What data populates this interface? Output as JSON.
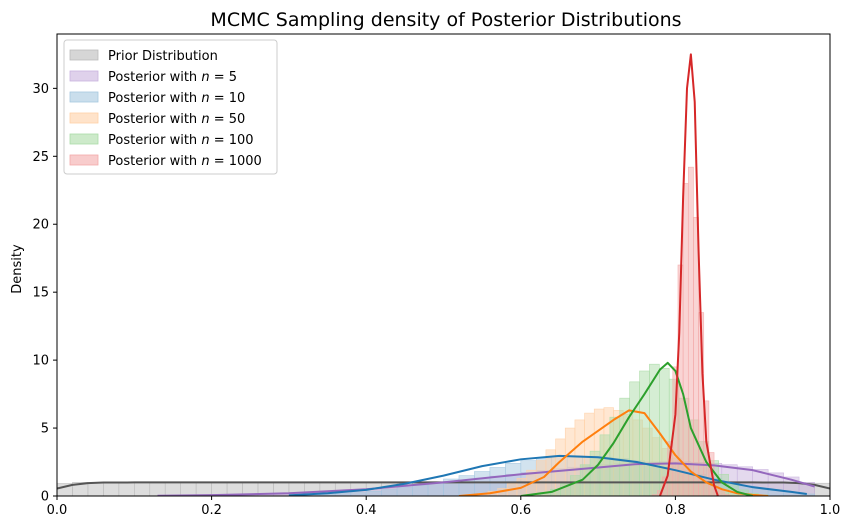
{
  "chart_data": {
    "type": "histogram+kde",
    "title": "MCMC Sampling density of Posterior Distributions",
    "xlabel": "",
    "ylabel": "Density",
    "xlim": [
      0.0,
      1.0
    ],
    "ylim": [
      0,
      34
    ],
    "x_ticks": [
      "0.0",
      "0.2",
      "0.4",
      "0.6",
      "0.8",
      "1.0"
    ],
    "x_tick_values": [
      0.0,
      0.2,
      0.4,
      0.6,
      0.8,
      1.0
    ],
    "y_ticks": [
      "0",
      "5",
      "10",
      "15",
      "20",
      "25",
      "30"
    ],
    "y_tick_values": [
      0,
      5,
      10,
      15,
      20,
      25,
      30
    ],
    "legend_position": "top-left",
    "series": [
      {
        "name": "Prior Distribution",
        "legend_prefix": "Prior Distribution",
        "legend_n": "",
        "color": "#555555",
        "fill": "#bbbbbb",
        "hist_range": [
          0.0,
          1.0
        ],
        "hist_values": [
          0.92,
          1.0,
          0.96,
          1.0,
          0.98,
          1.0,
          0.95,
          1.02,
          0.99,
          1.0,
          0.97,
          1.0,
          1.01,
          0.98,
          1.0,
          1.02,
          0.99,
          1.0,
          0.96,
          1.01,
          1.0,
          0.98,
          1.0,
          1.02,
          0.99,
          1.0,
          0.97,
          1.0,
          1.01,
          1.0,
          0.98,
          1.0,
          0.99,
          1.01,
          1.0,
          0.97,
          1.0,
          1.02,
          0.99,
          1.0,
          0.98,
          1.0,
          1.0,
          0.99,
          1.01,
          1.0,
          0.98,
          1.0,
          0.96,
          0.94
        ],
        "kde_x": [
          0.0,
          0.02,
          0.04,
          0.06,
          0.1,
          0.2,
          0.3,
          0.4,
          0.5,
          0.6,
          0.7,
          0.8,
          0.9,
          0.94,
          0.96,
          0.98,
          1.0
        ],
        "kde_y": [
          0.55,
          0.82,
          0.95,
          0.99,
          1.0,
          1.0,
          1.0,
          1.0,
          1.0,
          1.0,
          1.0,
          1.0,
          1.0,
          0.99,
          0.95,
          0.82,
          0.55
        ]
      },
      {
        "name": "Posterior with n = 5",
        "legend_prefix": "Posterior with ",
        "legend_n": "5",
        "color": "#9467bd",
        "fill": "#c9b3de",
        "hist_range": [
          0.14,
          0.98
        ],
        "hist_values": [
          0.02,
          0.03,
          0.04,
          0.06,
          0.08,
          0.1,
          0.13,
          0.16,
          0.2,
          0.24,
          0.29,
          0.35,
          0.42,
          0.5,
          0.58,
          0.68,
          0.8,
          0.92,
          1.05,
          1.18,
          1.32,
          1.46,
          1.6,
          1.74,
          1.88,
          2.0,
          2.12,
          2.22,
          2.32,
          2.4,
          2.46,
          2.5,
          2.52,
          2.52,
          2.48,
          2.4,
          2.3,
          2.15,
          1.95,
          1.7,
          1.4,
          1.0
        ],
        "kde_x": [
          0.13,
          0.2,
          0.3,
          0.4,
          0.5,
          0.6,
          0.7,
          0.75,
          0.8,
          0.85,
          0.9,
          0.95,
          0.98
        ],
        "kde_y": [
          0.02,
          0.06,
          0.2,
          0.5,
          1.0,
          1.6,
          2.1,
          2.35,
          2.4,
          2.25,
          1.9,
          1.2,
          0.7
        ]
      },
      {
        "name": "Posterior with n = 10",
        "legend_prefix": "Posterior with ",
        "legend_n": "10",
        "color": "#1f77b4",
        "fill": "#a6c8e0",
        "hist_range": [
          0.3,
          0.98
        ],
        "hist_values": [
          0.05,
          0.08,
          0.12,
          0.18,
          0.25,
          0.35,
          0.48,
          0.62,
          0.8,
          1.0,
          1.25,
          1.5,
          1.8,
          2.1,
          2.4,
          2.6,
          2.8,
          2.9,
          2.95,
          2.9,
          2.85,
          2.75,
          2.6,
          2.4,
          2.15,
          1.9,
          1.6,
          1.3,
          1.0,
          0.75,
          0.55,
          0.38,
          0.25,
          0.15
        ],
        "kde_x": [
          0.3,
          0.35,
          0.4,
          0.45,
          0.5,
          0.55,
          0.6,
          0.65,
          0.7,
          0.75,
          0.8,
          0.85,
          0.9,
          0.95,
          0.97
        ],
        "kde_y": [
          0.05,
          0.2,
          0.45,
          0.9,
          1.5,
          2.2,
          2.7,
          2.95,
          2.85,
          2.5,
          1.9,
          1.2,
          0.65,
          0.3,
          0.15
        ]
      },
      {
        "name": "Posterior with n = 50",
        "legend_prefix": "Posterior with ",
        "legend_n": "50",
        "color": "#ff7f0e",
        "fill": "#ffd0a6",
        "hist_range": [
          0.52,
          0.92
        ],
        "hist_values": [
          0.05,
          0.1,
          0.2,
          0.35,
          0.55,
          0.9,
          1.3,
          1.9,
          2.6,
          3.4,
          4.2,
          5.0,
          5.6,
          6.1,
          6.4,
          6.5,
          6.3,
          6.0,
          5.6,
          5.0,
          4.3,
          3.5,
          2.8,
          2.1,
          1.5,
          1.0,
          0.65,
          0.4,
          0.25,
          0.15,
          0.08,
          0.04
        ],
        "kde_x": [
          0.52,
          0.56,
          0.6,
          0.63,
          0.65,
          0.68,
          0.7,
          0.72,
          0.74,
          0.76,
          0.78,
          0.8,
          0.82,
          0.84,
          0.86,
          0.88,
          0.9,
          0.92
        ],
        "kde_y": [
          0.0,
          0.2,
          0.6,
          1.4,
          2.5,
          4.0,
          4.8,
          5.6,
          6.3,
          6.1,
          4.6,
          3.0,
          1.8,
          1.0,
          0.5,
          0.2,
          0.08,
          0.0
        ]
      },
      {
        "name": "Posterior with n = 100",
        "legend_prefix": "Posterior with ",
        "legend_n": "100",
        "color": "#2ca02c",
        "fill": "#abdca7",
        "hist_range": [
          0.6,
          0.92
        ],
        "hist_values": [
          0.05,
          0.12,
          0.25,
          0.5,
          0.9,
          1.5,
          2.3,
          3.3,
          4.5,
          5.8,
          7.2,
          8.4,
          9.2,
          9.7,
          9.4,
          8.6,
          7.2,
          5.6,
          4.0,
          2.6,
          1.6,
          0.9,
          0.45,
          0.2,
          0.08
        ],
        "kde_x": [
          0.6,
          0.64,
          0.68,
          0.7,
          0.72,
          0.74,
          0.76,
          0.78,
          0.79,
          0.8,
          0.81,
          0.82,
          0.84,
          0.86,
          0.88,
          0.9
        ],
        "kde_y": [
          0.0,
          0.3,
          1.2,
          2.3,
          3.9,
          5.8,
          7.5,
          9.3,
          9.8,
          9.2,
          7.5,
          5.0,
          2.5,
          1.0,
          0.3,
          0.0
        ]
      },
      {
        "name": "Posterior with n = 1000",
        "legend_prefix": "Posterior with ",
        "legend_n": "1000",
        "color": "#d62728",
        "fill": "#f3aaaa",
        "hist_range": [
          0.77,
          0.87
        ],
        "hist_values": [
          0.1,
          0.4,
          1.4,
          4.0,
          9.5,
          17.0,
          23.0,
          24.2,
          20.5,
          13.5,
          7.0,
          3.2,
          1.2,
          0.4,
          0.1
        ],
        "kde_x": [
          0.78,
          0.79,
          0.8,
          0.805,
          0.81,
          0.815,
          0.82,
          0.825,
          0.83,
          0.835,
          0.84,
          0.85,
          0.855
        ],
        "kde_y": [
          0.0,
          1.5,
          6.0,
          12.0,
          22.0,
          30.0,
          32.5,
          29.0,
          18.0,
          9.0,
          4.0,
          0.8,
          0.0
        ]
      }
    ]
  }
}
